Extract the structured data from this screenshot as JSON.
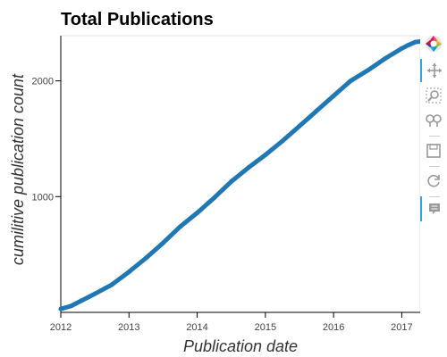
{
  "chart_data": {
    "type": "line",
    "title": "Total Publications",
    "xlabel": "Publication date",
    "ylabel": "cumilitive publication count",
    "x_ticks": [
      "2012",
      "2013",
      "2014",
      "2015",
      "2016",
      "2017"
    ],
    "y_ticks": [
      "1000",
      "2000"
    ],
    "xlim": [
      2012.0,
      2017.27
    ],
    "ylim": [
      0,
      2390
    ],
    "series": [
      {
        "color": "#1f77b4",
        "x": [
          2012.0,
          2012.15,
          2012.3,
          2012.5,
          2012.75,
          2013.0,
          2013.25,
          2013.5,
          2013.75,
          2014.0,
          2014.25,
          2014.5,
          2014.75,
          2015.0,
          2015.25,
          2015.5,
          2015.75,
          2016.0,
          2016.25,
          2016.5,
          2016.75,
          2017.0,
          2017.1,
          2017.2,
          2017.27
        ],
        "y": [
          30,
          55,
          100,
          160,
          240,
          350,
          470,
          600,
          740,
          860,
          990,
          1130,
          1250,
          1360,
          1480,
          1610,
          1740,
          1870,
          2000,
          2090,
          2190,
          2280,
          2310,
          2335,
          2340
        ]
      }
    ],
    "grid": false,
    "legend": "none"
  },
  "toolbar": {
    "tools": [
      {
        "icon": "logo-icon"
      },
      {
        "icon": "pan-icon"
      },
      {
        "icon": "box-zoom-icon"
      },
      {
        "icon": "wheel-zoom-icon"
      },
      {
        "icon": "save-icon"
      },
      {
        "icon": "reset-icon"
      },
      {
        "icon": "hover-icon"
      }
    ],
    "active_color": "#26aae1"
  }
}
